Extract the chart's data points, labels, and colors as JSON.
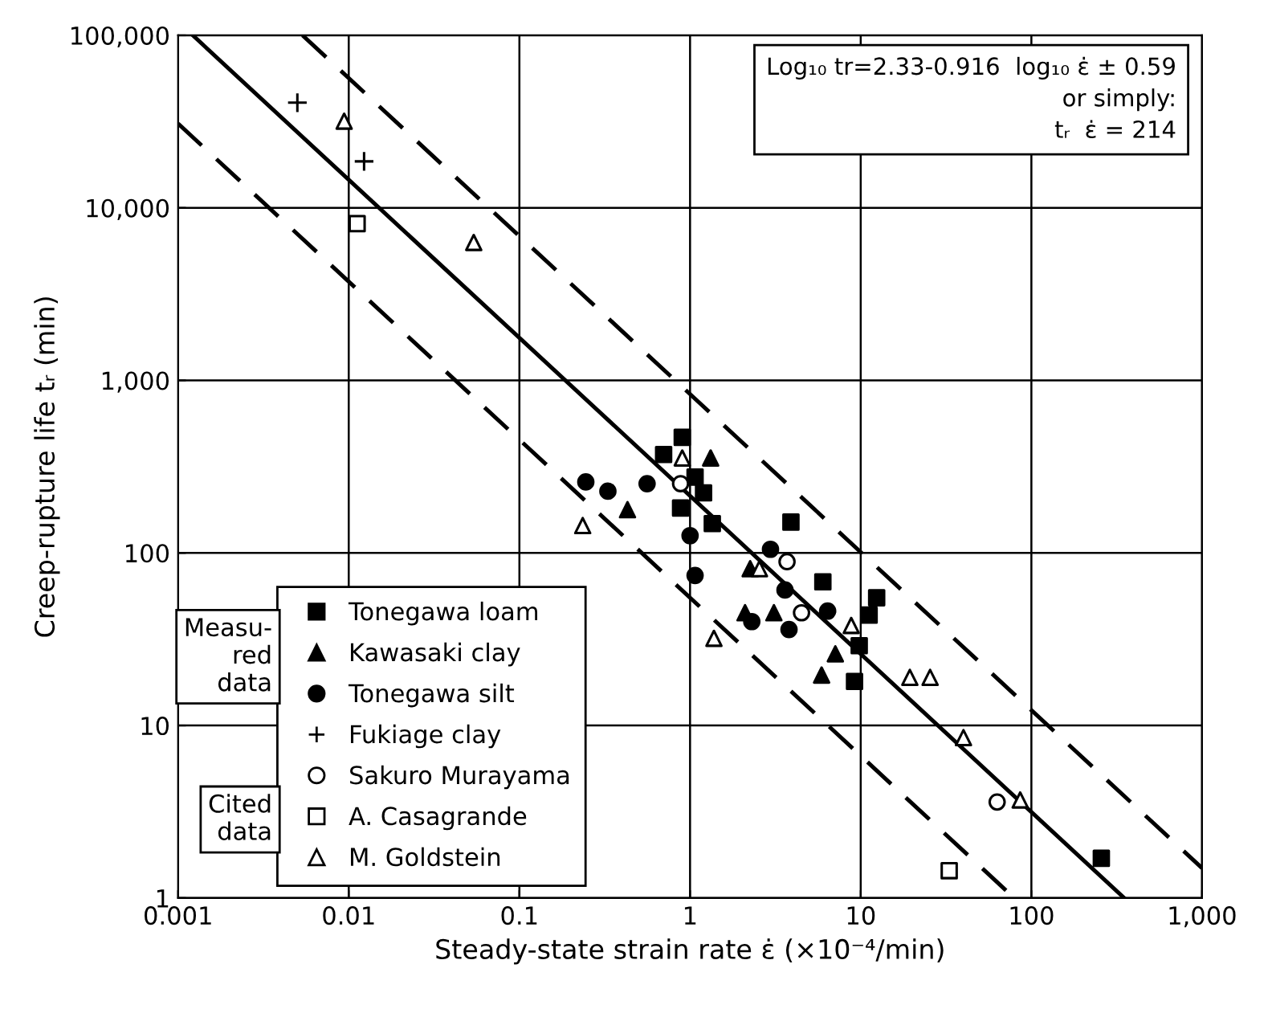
{
  "chart_data": {
    "type": "scatter",
    "xlabel": "Steady-state strain rate ε̇ (×10⁻⁴/min)",
    "ylabel": "Creep-rupture life tᵣ (min)",
    "log": "xy",
    "xlim": [
      0.001,
      1000
    ],
    "ylim": [
      1,
      100000
    ],
    "xticks": [
      0.001,
      0.01,
      0.1,
      1,
      10,
      100,
      {
        "value": 1000,
        "label": "1,000"
      }
    ],
    "yticks": [
      1,
      10,
      100,
      {
        "value": 1000,
        "label": "1,000"
      },
      {
        "value": 10000,
        "label": "10,000"
      },
      {
        "value": 100000,
        "label": "100,000"
      }
    ],
    "grid": true,
    "legend": "bottom left",
    "annotations": [
      "Log₁₀ tr=2.33-0.916  log₁₀ ε̇ ± 0.59\n        or simply:\ntᵣ  ε̇ = 214",
      "Measu-\nred\ndata",
      "Cited\ndata"
    ],
    "series": [
      {
        "name": "Tonegawa loam",
        "marker": "square",
        "color": "#000000",
        "x": [
          0.9,
          0.7,
          1.07,
          1.2,
          0.88,
          1.35,
          3.9,
          6.0,
          12.4,
          11.2,
          9.8,
          9.2,
          257
        ],
        "values": [
          468,
          372,
          275,
          223,
          182,
          148,
          151,
          68,
          55,
          43.6,
          29,
          18,
          1.7
        ]
      },
      {
        "name": "Kawasaki clay",
        "marker": "triangle",
        "color": "#000000",
        "x": [
          1.32,
          0.43,
          2.25,
          2.1,
          3.1,
          7.1,
          5.9
        ],
        "values": [
          355,
          178,
          81,
          45,
          45,
          26,
          19.6
        ]
      },
      {
        "name": "Tonegawa silt",
        "marker": "circle",
        "color": "#000000",
        "x": [
          0.245,
          0.33,
          0.56,
          1.0,
          1.07,
          2.96,
          3.6,
          2.3,
          3.8,
          6.4
        ],
        "values": [
          258,
          228,
          252,
          126,
          74,
          105,
          61,
          40,
          36,
          46
        ]
      },
      {
        "name": "Fukiage clay",
        "marker": "cross",
        "color": "#000000",
        "x": [
          0.005,
          0.0123
        ],
        "values": [
          40700,
          18600
        ]
      },
      {
        "name": "Sakuro Murayama",
        "marker": "circle",
        "color": "#ffffff",
        "x": [
          0.88,
          3.7,
          4.5,
          63
        ],
        "values": [
          252,
          89,
          45,
          3.6
        ]
      },
      {
        "name": "A. Casagrande",
        "marker": "square",
        "color": "#ffffff",
        "x": [
          0.0112,
          33
        ],
        "values": [
          8100,
          1.44
        ]
      },
      {
        "name": "M. Goldstein",
        "marker": "triangle",
        "color": "#ffffff",
        "x": [
          0.0094,
          0.054,
          0.235,
          0.9,
          1.38,
          2.55,
          8.8,
          19.4,
          25.5,
          40,
          86
        ],
        "values": [
          31800,
          6300,
          144,
          355,
          32,
          81,
          38,
          19,
          19,
          8.5,
          3.7
        ]
      },
      {
        "type": "line",
        "line_style": "solid",
        "marker": "none",
        "color": "#000000",
        "x": [
          0.00122,
          350
        ],
        "values": [
          100000,
          1
        ]
      },
      {
        "type": "line",
        "line_style": "dashed",
        "marker": "none",
        "color": "#000000",
        "x": [
          0.00536,
          1000
        ],
        "values": [
          100000,
          1.49
        ]
      },
      {
        "type": "line",
        "line_style": "dashed",
        "marker": "none",
        "color": "#000000",
        "x": [
          0.001,
          79.4
        ],
        "values": [
          30800,
          1
        ]
      }
    ]
  }
}
